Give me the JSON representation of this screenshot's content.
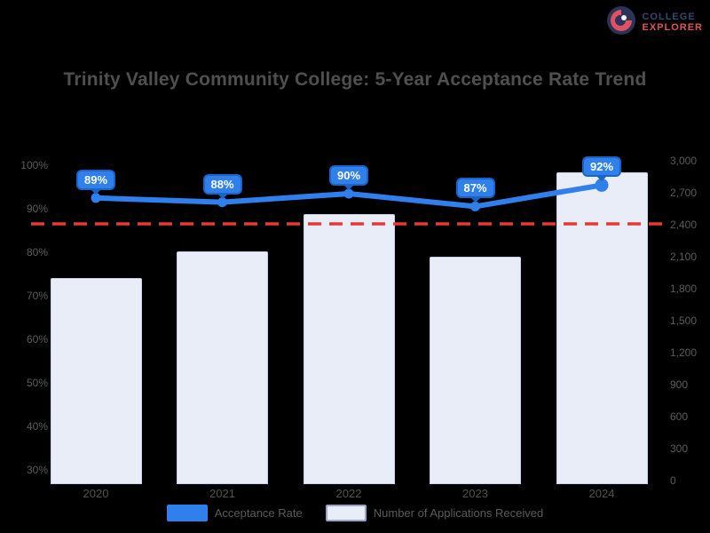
{
  "background": "#000000",
  "logo": {
    "icon": "compass-logo-icon",
    "line1": "COLLEGE",
    "line2": "EXPLORER",
    "icon_color": "#2b3356",
    "accent_color": "#e05263"
  },
  "title": "Trinity Valley Community College: 5-Year Acceptance Rate Trend",
  "chart_data": {
    "type": "combo-bar-line",
    "categories": [
      "2020",
      "2021",
      "2022",
      "2023",
      "2024"
    ],
    "series": [
      {
        "name": "Acceptance Rate",
        "type": "line",
        "axis": "left",
        "unit": "%",
        "values": [
          89,
          88,
          90,
          87,
          92
        ],
        "point_labels": [
          "89%",
          "88%",
          "90%",
          "87%",
          "92%"
        ],
        "color": "#2f80ed"
      },
      {
        "name": "Number of Applications Received",
        "type": "bar",
        "axis": "right",
        "values": [
          1900,
          2150,
          2500,
          2100,
          2890
        ],
        "color": "#e9edf8",
        "border_color": "#c7d2ec"
      }
    ],
    "left_axis": {
      "tick_labels": [
        "100%",
        "90%",
        "80%",
        "70%",
        "60%",
        "50%",
        "40%",
        "30%"
      ],
      "max": 100,
      "min": 30
    },
    "right_axis": {
      "tick_labels": [
        "3,000",
        "2,700",
        "2,400",
        "2,100",
        "1,800",
        "1,500",
        "1,200",
        "900",
        "600",
        "300",
        "0"
      ],
      "max": 3000,
      "min": 0
    },
    "threshold_line": {
      "style": "dashed",
      "color": "#e53935",
      "approx_value_left_axis": "85%",
      "approx_value_right_axis": "2,400"
    },
    "legend": [
      {
        "label": "Acceptance Rate",
        "swatch_color": "#2f80ed",
        "swatch_border": "#2f80ed"
      },
      {
        "label": "Number of Applications Received",
        "swatch_color": "#e9edf8",
        "swatch_border": "#9aa6c9"
      }
    ],
    "grid": "off",
    "legend_position": "bottom"
  }
}
